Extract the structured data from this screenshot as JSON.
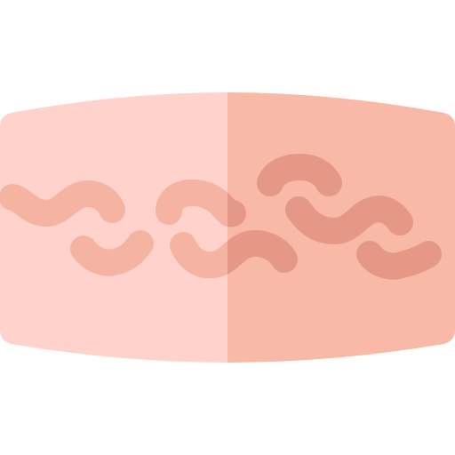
{
  "illustration": {
    "icon_name": "skin-tissue-icon",
    "colors": {
      "background": "#ffffff",
      "skin_light": "#ffd3cb",
      "skin_dark": "#f9b9a7",
      "worm_light": "#f5b3a2",
      "worm_dark": "#e59886"
    },
    "wavy_marks": [
      {
        "name": "wavy-mark-left-upper",
        "shade": "light"
      },
      {
        "name": "wavy-mark-left-lower",
        "shade": "light"
      },
      {
        "name": "wavy-mark-center-upper",
        "shade": "split"
      },
      {
        "name": "wavy-mark-center-lower",
        "shade": "split"
      },
      {
        "name": "wavy-mark-right-top",
        "shade": "dark"
      },
      {
        "name": "wavy-mark-right-middle",
        "shade": "dark"
      },
      {
        "name": "wavy-mark-right-lower",
        "shade": "dark"
      }
    ]
  }
}
